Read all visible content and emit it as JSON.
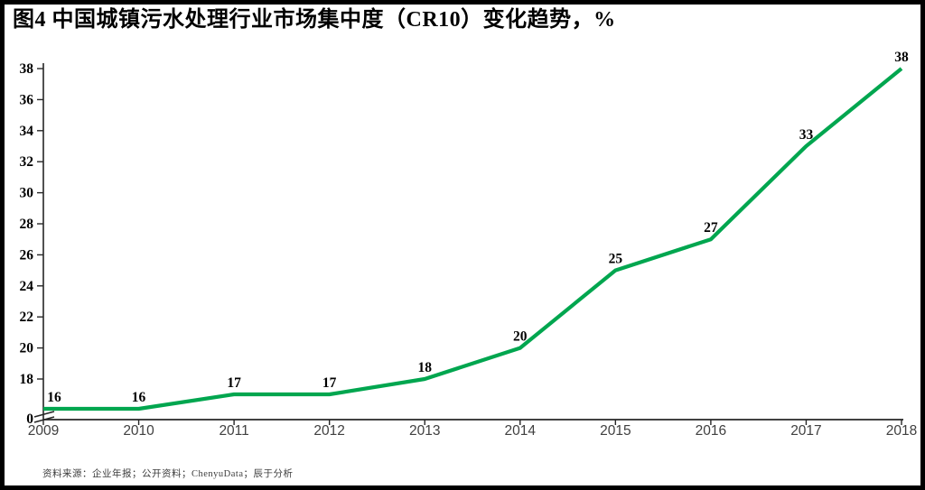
{
  "page": {
    "title": "图4 中国城镇污水处理行业市场集中度（CR10）变化趋势，%",
    "source_note": "资料来源：企业年报；公开资料；ChenyuData；辰于分析"
  },
  "chart_data": {
    "type": "line",
    "title": "图4 中国城镇污水处理行业市场集中度（CR10）变化趋势，%",
    "categories": [
      "2009",
      "2010",
      "2011",
      "2012",
      "2013",
      "2014",
      "2015",
      "2016",
      "2017",
      "2018"
    ],
    "values": [
      16,
      16,
      17,
      17,
      18,
      20,
      25,
      27,
      33,
      38
    ],
    "series_name": "CR10",
    "unit": "%",
    "xlabel": "",
    "ylabel": "",
    "ylim": [
      0,
      38
    ],
    "y_ticks": [
      0,
      18,
      20,
      22,
      24,
      26,
      28,
      30,
      32,
      34,
      36,
      38
    ],
    "axis_break": true,
    "axis_break_between": [
      0,
      16
    ],
    "grid": false,
    "legend_position": "none",
    "data_labels_shown": true,
    "colors": {
      "line": "#00A64F",
      "axis": "#262626",
      "year_labels": "#404040",
      "value_labels": "#000000",
      "tick_numbers": "#000000"
    }
  }
}
